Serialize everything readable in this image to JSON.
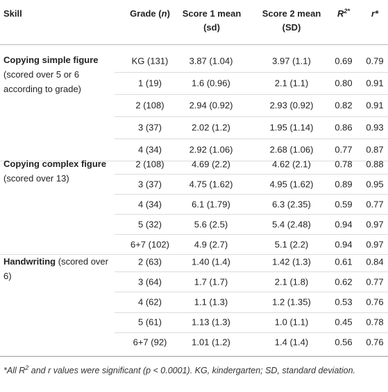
{
  "header": {
    "cells": [
      [
        "Skill"
      ],
      [
        "Grade (",
        "n",
        ")"
      ],
      [
        "Score 1 mean (sd)"
      ],
      [
        "Score 2 mean (SD)"
      ],
      [
        "R",
        "2*"
      ],
      [
        "r*"
      ]
    ]
  },
  "groups": [
    {
      "skill": {
        "name": "Copying simple figure",
        "note": "(scored over 5 or 6 according to grade)"
      },
      "rows": [
        [
          "KG (131)",
          "3.87 (1.04)",
          "3.97 (1.1)",
          "0.69",
          "0.79"
        ],
        [
          "1 (19)",
          "1.6 (0.96)",
          "2.1 (1.1)",
          "0.80",
          "0.91"
        ],
        [
          "2 (108)",
          "2.94 (0.92)",
          "2.93 (0.92)",
          "0.82",
          "0.91"
        ],
        [
          "3 (37)",
          "2.02 (1.2)",
          "1.95 (1.14)",
          "0.86",
          "0.93"
        ],
        [
          "4 (34)",
          "2.92 (1.06)",
          "2.68 (1.06)",
          "0.77",
          "0.87"
        ]
      ]
    },
    {
      "skill": {
        "name": "Copying complex figure",
        "note": "(scored over 13)"
      },
      "rows": [
        [
          "2 (108)",
          "4.69 (2.2)",
          "4.62 (2.1)",
          "0.78",
          "0.88"
        ],
        [
          "3 (37)",
          "4.75 (1.62)",
          "4.95 (1.62)",
          "0.89",
          "0.95"
        ],
        [
          "4 (34)",
          "6.1 (1.79)",
          "6.3 (2.35)",
          "0.59",
          "0.77"
        ],
        [
          "5 (32)",
          "5.6 (2.5)",
          "5.4 (2.48)",
          "0.94",
          "0.97"
        ],
        [
          "6+7 (102)",
          "4.9 (2.7)",
          "5.1 (2.2)",
          "0.94",
          "0.97"
        ]
      ]
    },
    {
      "skill": {
        "name": "Handwriting",
        "note": "(scored over 6)"
      },
      "rows": [
        [
          "2 (63)",
          "1.40 (1.4)",
          "1.42 (1.3)",
          "0.61",
          "0.84"
        ],
        [
          "3 (64)",
          "1.7 (1.7)",
          "2.1 (1.8)",
          "0.62",
          "0.77"
        ],
        [
          "4 (62)",
          "1.1 (1.3)",
          "1.2 (1.35)",
          "0.53",
          "0.76"
        ],
        [
          "5 (61)",
          "1.13 (1.3)",
          "1.0 (1.1)",
          "0.45",
          "0.78"
        ],
        [
          "6+7 (92)",
          "1.01 (1.2)",
          "1.4 (1.4)",
          "0.56",
          "0.76"
        ]
      ]
    }
  ],
  "footnote": [
    "*All R",
    "2",
    " and r values were significant (p < 0.0001). KG, kindergarten; SD, standard deviation."
  ]
}
